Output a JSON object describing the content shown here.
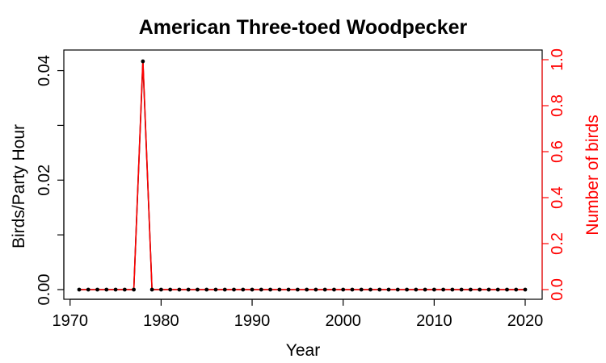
{
  "chart_data": {
    "type": "line",
    "title": "American Three-toed Woodpecker",
    "xlabel": "Year",
    "ylabel_left": "Birds/Party Hour",
    "ylabel_right": "Number of birds",
    "xlim": [
      1970,
      2021
    ],
    "ylim_left": [
      0,
      0.042
    ],
    "ylim_right": [
      0,
      1.0
    ],
    "x_ticks": [
      1970,
      1980,
      1990,
      2000,
      2010,
      2020
    ],
    "y_left_ticks": [
      0.0,
      0.01,
      0.02,
      0.03,
      0.04
    ],
    "y_left_tick_labels": [
      "0.00",
      "",
      "0.02",
      "",
      "0.04"
    ],
    "y_right_ticks": [
      0.0,
      0.2,
      0.4,
      0.6,
      0.8,
      1.0
    ],
    "y_right_tick_labels": [
      "0.0",
      "0.2",
      "0.4",
      "0.6",
      "0.8",
      "1.0"
    ],
    "grid": false,
    "x": [
      1971,
      1972,
      1973,
      1974,
      1975,
      1976,
      1977,
      1978,
      1979,
      1980,
      1981,
      1982,
      1983,
      1984,
      1985,
      1986,
      1987,
      1988,
      1989,
      1990,
      1991,
      1992,
      1993,
      1994,
      1995,
      1996,
      1997,
      1998,
      1999,
      2000,
      2001,
      2002,
      2003,
      2004,
      2005,
      2006,
      2007,
      2008,
      2009,
      2010,
      2011,
      2012,
      2013,
      2014,
      2015,
      2016,
      2017,
      2018,
      2019,
      2020
    ],
    "series": [
      {
        "axis": "left",
        "color": "#000000",
        "marker": "point",
        "values": [
          0,
          0,
          0,
          0,
          0,
          0,
          0,
          0.0417,
          0,
          0,
          0,
          0,
          0,
          0,
          0,
          0,
          0,
          0,
          0,
          0,
          0,
          0,
          0,
          0,
          0,
          0,
          0,
          0,
          0,
          0,
          0,
          0,
          0,
          0,
          0,
          0,
          0,
          0,
          0,
          0,
          0,
          0,
          0,
          0,
          0,
          0,
          0,
          0,
          0,
          0
        ]
      },
      {
        "axis": "right",
        "color": "#ff0000",
        "marker": "none",
        "values": [
          0,
          0,
          0,
          0,
          0,
          0,
          0,
          1,
          0,
          0,
          0,
          0,
          0,
          0,
          0,
          0,
          0,
          0,
          0,
          0,
          0,
          0,
          0,
          0,
          0,
          0,
          0,
          0,
          0,
          0,
          0,
          0,
          0,
          0,
          0,
          0,
          0,
          0,
          0,
          0,
          0,
          0,
          0,
          0,
          0,
          0,
          0,
          0,
          0,
          0
        ]
      }
    ]
  }
}
